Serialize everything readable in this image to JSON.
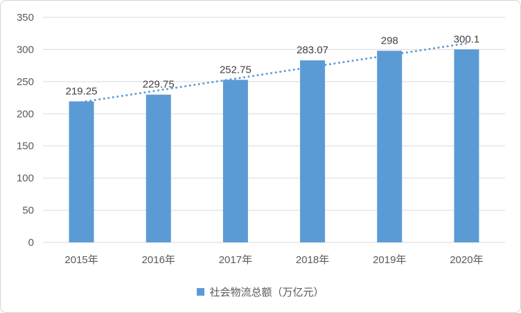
{
  "frame": {
    "background": "#ffffff",
    "border_color": "#d3d3d3"
  },
  "chart_data": {
    "type": "bar",
    "title": "",
    "categories": [
      "2015年",
      "2016年",
      "2017年",
      "2018年",
      "2019年",
      "2020年"
    ],
    "values": [
      219.25,
      229.75,
      252.75,
      283.07,
      298,
      300.1
    ],
    "data_labels": [
      "219.25",
      "229.75",
      "252.75",
      "283.07",
      "298",
      "300.1"
    ],
    "xlabel": "",
    "ylabel": "",
    "ylim": [
      0,
      350
    ],
    "yticks": [
      0,
      50,
      100,
      150,
      200,
      250,
      300,
      350
    ],
    "grid": true,
    "legend": {
      "position": "bottom",
      "label": "社会物流总额（万亿元）"
    },
    "trendline": {
      "type": "linear",
      "style": "dotted"
    },
    "colors": {
      "bar": "#5b9bd5",
      "trendline": "#5b9bd5",
      "gridline": "#d9d9d9",
      "axis_label": "#595959",
      "data_label": "#404040"
    }
  }
}
